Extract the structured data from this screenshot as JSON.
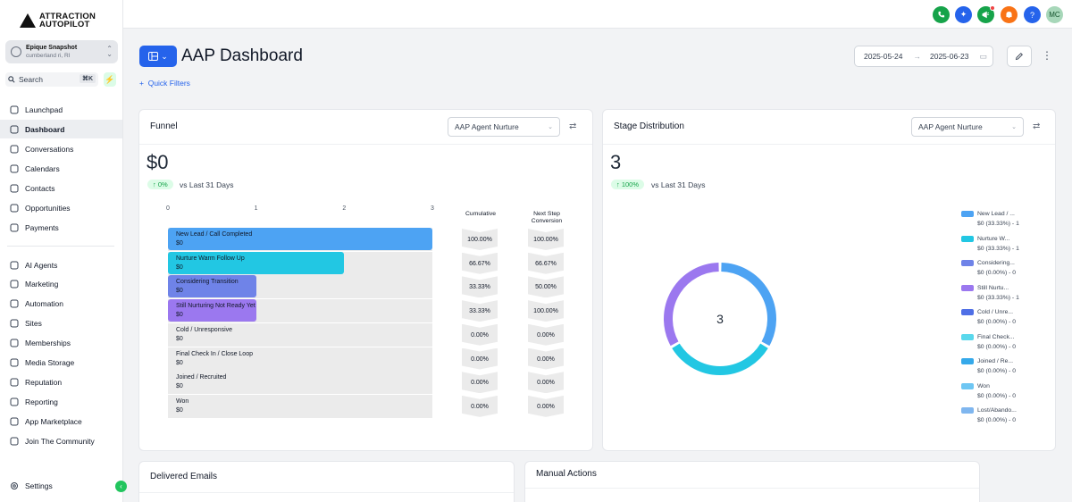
{
  "brand": {
    "line1": "ATTRACTION",
    "line2": "AUTOPILOT"
  },
  "account": {
    "name": "Epique Snapshot",
    "location": "cumberland ri, RI"
  },
  "search": {
    "label": "Search",
    "shortcut": "⌘K"
  },
  "nav": [
    {
      "label": "Launchpad",
      "icon": "rocket-icon"
    },
    {
      "label": "Dashboard",
      "icon": "grid-icon",
      "active": true
    },
    {
      "label": "Conversations",
      "icon": "chat-icon"
    },
    {
      "label": "Calendars",
      "icon": "calendar-icon"
    },
    {
      "label": "Contacts",
      "icon": "contacts-icon"
    },
    {
      "label": "Opportunities",
      "icon": "opportunities-icon"
    },
    {
      "label": "Payments",
      "icon": "payments-icon"
    },
    {
      "label": "AI Agents",
      "icon": "sparkle-icon"
    },
    {
      "label": "Marketing",
      "icon": "send-icon"
    },
    {
      "label": "Automation",
      "icon": "automation-icon"
    },
    {
      "label": "Sites",
      "icon": "sites-icon"
    },
    {
      "label": "Memberships",
      "icon": "memberships-icon"
    },
    {
      "label": "Media Storage",
      "icon": "media-icon"
    },
    {
      "label": "Reputation",
      "icon": "star-icon"
    },
    {
      "label": "Reporting",
      "icon": "trend-icon"
    },
    {
      "label": "App Marketplace",
      "icon": "apps-icon"
    },
    {
      "label": "Join The Community",
      "icon": "community-icon"
    }
  ],
  "settings_label": "Settings",
  "topbar": {
    "avatar_initials": "MC"
  },
  "header": {
    "title": "AAP Dashboard",
    "quick_filters": "Quick Filters",
    "date_from": "2025-05-24",
    "date_to": "2025-06-23"
  },
  "funnel": {
    "title": "Funnel",
    "pipeline": "AAP Agent Nurture",
    "value": "$0",
    "change": "0%",
    "compare": "vs Last 31 Days",
    "axis": [
      "0",
      "1",
      "2",
      "3"
    ],
    "col_cumulative": "Cumulative",
    "col_next_1": "Next Step",
    "col_next_2": "Conversion",
    "stages": [
      {
        "name": "New Lead / Call Completed",
        "value": "$0",
        "count": 3,
        "color": "#4da3f3",
        "cumulative": "100.00%",
        "next": "100.00%"
      },
      {
        "name": "Nurture   Warm Follow Up",
        "value": "$0",
        "count": 2,
        "color": "#22c7e3",
        "cumulative": "66.67%",
        "next": "66.67%"
      },
      {
        "name": "Considering Transition",
        "value": "$0",
        "count": 1,
        "color": "#6f83e8",
        "cumulative": "33.33%",
        "next": "50.00%"
      },
      {
        "name": "Still Nurturing   Not Ready Yet",
        "value": "$0",
        "count": 1,
        "color": "#9b78ef",
        "cumulative": "33.33%",
        "next": "100.00%"
      },
      {
        "name": "Cold / Unresponsive",
        "value": "$0",
        "count": 0,
        "color": "#4f6fe6",
        "cumulative": "0.00%",
        "next": "0.00%"
      },
      {
        "name": "Final Check In / Close Loop",
        "value": "$0",
        "count": 0,
        "color": "#5ad8ec",
        "cumulative": "0.00%",
        "next": "0.00%"
      },
      {
        "name": "Joined / Recruited",
        "value": "$0",
        "count": 0,
        "color": "#35a9ea",
        "cumulative": "0.00%",
        "next": "0.00%"
      },
      {
        "name": "Won",
        "value": "$0",
        "count": 0,
        "color": "#6ec6f3",
        "cumulative": "0.00%",
        "next": "0.00%"
      }
    ]
  },
  "stage_distribution": {
    "title": "Stage Distribution",
    "pipeline": "AAP Agent Nurture",
    "value": "3",
    "change": "100%",
    "compare": "vs Last 31 Days",
    "center_label": "3",
    "legend": [
      {
        "name": "New Lead / ...",
        "detail": "$0 (33.33%) - 1",
        "color": "#4da3f3",
        "share": 1
      },
      {
        "name": "Nurture   W...",
        "detail": "$0 (33.33%) - 1",
        "color": "#22c7e3",
        "share": 1
      },
      {
        "name": "Considering...",
        "detail": "$0 (0.00%) - 0",
        "color": "#6f83e8",
        "share": 0
      },
      {
        "name": "Still Nurtu...",
        "detail": "$0 (33.33%) - 1",
        "color": "#9b78ef",
        "share": 1
      },
      {
        "name": "Cold / Unre...",
        "detail": "$0 (0.00%) - 0",
        "color": "#4f6fe6",
        "share": 0
      },
      {
        "name": "Final Check...",
        "detail": "$0 (0.00%) - 0",
        "color": "#5ad8ec",
        "share": 0
      },
      {
        "name": "Joined / Re...",
        "detail": "$0 (0.00%) - 0",
        "color": "#35a9ea",
        "share": 0
      },
      {
        "name": "Won",
        "detail": "$0 (0.00%) - 0",
        "color": "#6ec6f3",
        "share": 0
      },
      {
        "name": "Lost/Abando...",
        "detail": "$0 (0.00%) - 0",
        "color": "#7fb6ef",
        "share": 0
      }
    ]
  },
  "delivered_emails": {
    "title": "Delivered Emails"
  },
  "manual_actions": {
    "title": "Manual Actions"
  }
}
